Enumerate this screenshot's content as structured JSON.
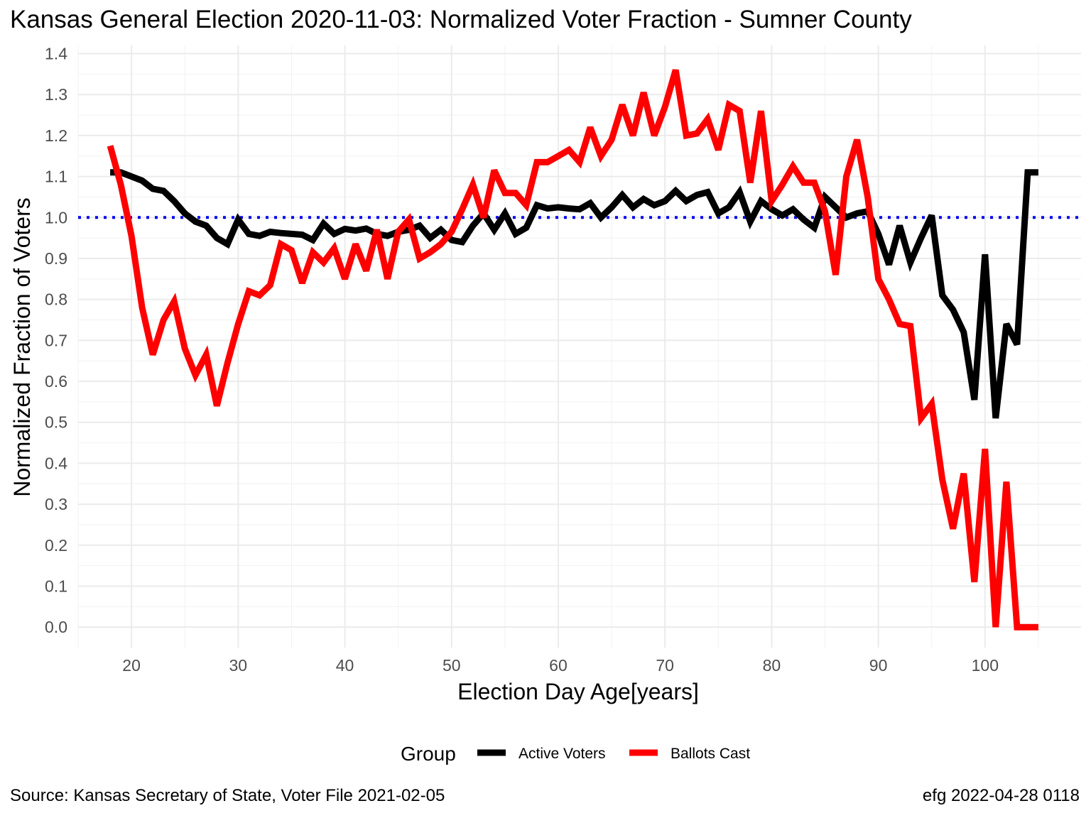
{
  "title": "Kansas General Election 2020-11-03:  Normalized Voter Fraction - Sumner County",
  "caption_left": "Source:  Kansas Secretary of State, Voter File  2021-02-05",
  "caption_right": "efg 2022-04-28 0118",
  "chart_data": {
    "type": "line",
    "xlabel": "Election Day Age[years]",
    "ylabel": "Normalized Fraction of Voters",
    "xlim": [
      15,
      109
    ],
    "ylim": [
      -0.05,
      1.42
    ],
    "xticks": [
      20,
      30,
      40,
      50,
      60,
      70,
      80,
      90,
      100
    ],
    "yticks": [
      0.0,
      0.1,
      0.2,
      0.3,
      0.4,
      0.5,
      0.6,
      0.7,
      0.8,
      0.9,
      1.0,
      1.1,
      1.2,
      1.3,
      1.4
    ],
    "grid": true,
    "reference_line": {
      "y": 1.0,
      "style": "dotted",
      "color": "#0000ee"
    },
    "legend": {
      "title": "Group",
      "position": "bottom"
    },
    "x": [
      18,
      19,
      20,
      21,
      22,
      23,
      24,
      25,
      26,
      27,
      28,
      29,
      30,
      31,
      32,
      33,
      34,
      35,
      36,
      37,
      38,
      39,
      40,
      41,
      42,
      43,
      44,
      45,
      46,
      47,
      48,
      49,
      50,
      51,
      52,
      53,
      54,
      55,
      56,
      57,
      58,
      59,
      60,
      61,
      62,
      63,
      64,
      65,
      66,
      67,
      68,
      69,
      70,
      71,
      72,
      73,
      74,
      75,
      76,
      77,
      78,
      79,
      80,
      81,
      82,
      83,
      84,
      85,
      86,
      87,
      88,
      89,
      90,
      91,
      92,
      93,
      94,
      95,
      96,
      97,
      98,
      99,
      100,
      101,
      102,
      103,
      104,
      105
    ],
    "series": [
      {
        "name": "Active Voters",
        "color": "#000000",
        "values": [
          1.11,
          1.11,
          1.1,
          1.09,
          1.07,
          1.065,
          1.04,
          1.01,
          0.99,
          0.98,
          0.95,
          0.935,
          0.995,
          0.96,
          0.955,
          0.965,
          0.962,
          0.96,
          0.958,
          0.945,
          0.985,
          0.96,
          0.972,
          0.968,
          0.973,
          0.96,
          0.955,
          0.965,
          0.97,
          0.98,
          0.95,
          0.97,
          0.945,
          0.94,
          0.98,
          1.01,
          0.97,
          1.01,
          0.96,
          0.975,
          1.03,
          1.022,
          1.025,
          1.022,
          1.02,
          1.035,
          1.0,
          1.025,
          1.055,
          1.025,
          1.045,
          1.03,
          1.04,
          1.065,
          1.04,
          1.055,
          1.062,
          1.01,
          1.025,
          1.062,
          0.99,
          1.04,
          1.02,
          1.005,
          1.02,
          0.995,
          0.975,
          1.05,
          1.025,
          1.0,
          1.01,
          1.015,
          0.96,
          0.885,
          0.98,
          0.89,
          0.95,
          1.005,
          0.81,
          0.775,
          0.72,
          0.555,
          0.91,
          0.51,
          0.74,
          0.69,
          1.11,
          1.11
        ]
      },
      {
        "name": "Ballots Cast",
        "color": "#ff0000",
        "values": [
          1.175,
          1.08,
          0.955,
          0.78,
          0.665,
          0.75,
          0.795,
          0.68,
          0.615,
          0.665,
          0.54,
          0.645,
          0.74,
          0.82,
          0.81,
          0.835,
          0.935,
          0.92,
          0.84,
          0.915,
          0.89,
          0.925,
          0.85,
          0.935,
          0.87,
          0.97,
          0.85,
          0.965,
          0.995,
          0.9,
          0.915,
          0.935,
          0.965,
          1.02,
          1.08,
          1.0,
          1.115,
          1.06,
          1.06,
          1.03,
          1.135,
          1.135,
          1.15,
          1.165,
          1.135,
          1.22,
          1.15,
          1.19,
          1.275,
          1.2,
          1.305,
          1.2,
          1.27,
          1.36,
          1.2,
          1.205,
          1.24,
          1.165,
          1.275,
          1.26,
          1.085,
          1.26,
          1.04,
          1.08,
          1.125,
          1.085,
          1.085,
          1.015,
          0.86,
          1.1,
          1.19,
          1.05,
          0.85,
          0.8,
          0.74,
          0.735,
          0.51,
          0.545,
          0.36,
          0.24,
          0.375,
          0.11,
          0.435,
          0.0,
          0.355,
          0.0,
          0.0,
          0.0
        ]
      }
    ]
  }
}
